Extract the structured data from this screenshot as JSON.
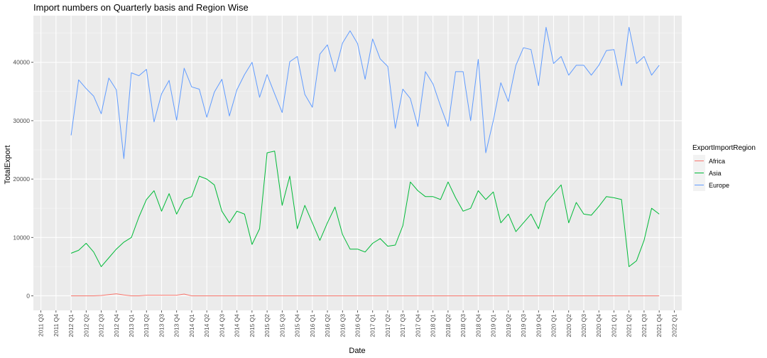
{
  "chart_data": {
    "type": "line",
    "title": "Import numbers on Quarterly basis and Region Wise",
    "xlabel": "Date",
    "ylabel": "TotalExport",
    "ylim": [
      -2500,
      48000
    ],
    "y_ticks": [
      0,
      10000,
      20000,
      30000,
      40000
    ],
    "x_tick_labels": [
      "2011 Q3",
      "2011 Q4",
      "2012 Q1",
      "2012 Q2",
      "2012 Q3",
      "2012 Q4",
      "2013 Q1",
      "2013 Q2",
      "2013 Q3",
      "2013 Q4",
      "2014 Q1",
      "2014 Q2",
      "2014 Q3",
      "2014 Q4",
      "2015 Q1",
      "2015 Q2",
      "2015 Q3",
      "2015 Q4",
      "2016 Q1",
      "2016 Q2",
      "2016 Q3",
      "2016 Q4",
      "2017 Q1",
      "2017 Q2",
      "2017 Q3",
      "2017 Q4",
      "2018 Q1",
      "2018 Q2",
      "2018 Q3",
      "2018 Q4",
      "2019 Q1",
      "2019 Q2",
      "2019 Q3",
      "2019 Q4",
      "2020 Q1",
      "2020 Q2",
      "2020 Q3",
      "2020 Q4",
      "2021 Q1",
      "2021 Q2",
      "2021 Q3",
      "2021 Q4",
      "2022 Q1"
    ],
    "legend": {
      "title": "ExportImportRegion",
      "position": "right"
    },
    "grid": true,
    "series": [
      {
        "name": "Africa",
        "color": "#F8766D",
        "x": [
          2.0,
          2.5,
          3.0,
          3.5,
          4.0,
          4.5,
          5.0,
          5.5,
          6.0,
          6.5,
          7.0,
          7.5,
          8.0,
          8.5,
          9.0,
          9.5,
          10.0,
          11.0,
          12.0,
          13.0,
          14.0,
          15.0,
          16.0,
          17.0,
          18.0,
          19.0,
          20.0,
          21.0,
          22.0,
          23.0,
          24.0,
          25.0,
          26.0,
          27.0,
          28.0,
          29.0,
          30.0,
          31.0,
          32.0,
          33.0,
          34.0,
          35.0,
          36.0,
          37.0,
          38.0,
          39.0,
          40.0,
          41.0
        ],
        "values": [
          0,
          0,
          0,
          0,
          50,
          200,
          350,
          150,
          0,
          0,
          100,
          100,
          100,
          100,
          100,
          300,
          0,
          0,
          0,
          0,
          0,
          0,
          0,
          0,
          0,
          0,
          0,
          0,
          0,
          0,
          0,
          0,
          0,
          0,
          0,
          0,
          0,
          0,
          0,
          0,
          0,
          0,
          0,
          0,
          0,
          0,
          0,
          0
        ]
      },
      {
        "name": "Asia",
        "color": "#00BA38",
        "x": [
          2.0,
          2.5,
          3.0,
          3.5,
          4.0,
          4.5,
          5.0,
          5.5,
          6.0,
          6.5,
          7.0,
          7.5,
          8.0,
          8.5,
          9.0,
          9.5,
          10.0,
          10.5,
          11.0,
          11.5,
          12.0,
          12.5,
          13.0,
          13.5,
          14.0,
          14.5,
          15.0,
          15.5,
          16.0,
          16.5,
          17.0,
          17.5,
          18.0,
          18.5,
          19.0,
          19.5,
          20.0,
          20.5,
          21.0,
          21.5,
          22.0,
          22.5,
          23.0,
          23.5,
          24.0,
          24.5,
          25.0,
          25.5,
          26.0,
          26.5,
          27.0,
          27.5,
          28.0,
          28.5,
          29.0,
          29.5,
          30.0,
          30.5,
          31.0,
          31.5,
          32.0,
          32.5,
          33.0,
          33.5,
          34.0,
          34.5,
          35.0,
          35.5,
          36.0,
          36.5,
          37.0,
          37.5,
          38.0,
          38.5,
          39.0,
          39.5,
          40.0,
          40.5,
          41.0
        ],
        "values": [
          7300,
          7800,
          9000,
          7500,
          5000,
          6500,
          8000,
          9200,
          10000,
          13500,
          16500,
          18000,
          14500,
          17500,
          14000,
          16500,
          17000,
          20500,
          20000,
          19000,
          14500,
          12500,
          14500,
          14000,
          8800,
          11500,
          24500,
          24800,
          15500,
          20500,
          11500,
          15500,
          12500,
          9500,
          12500,
          15200,
          10500,
          8000,
          8000,
          7500,
          9000,
          9800,
          8500,
          8700,
          12000,
          19500,
          18000,
          17000,
          17000,
          16500,
          19500,
          16800,
          14500,
          15000,
          18000,
          16500,
          17800,
          12500,
          14000,
          11000,
          12500,
          14000,
          11500,
          16000,
          17500,
          19000,
          12500,
          16000,
          14000,
          13800,
          15300,
          17000,
          16800,
          16500,
          5000,
          6000,
          9500,
          15000,
          14000
        ]
      },
      {
        "name": "Europe",
        "color": "#619CFF",
        "x": [
          2.0,
          2.5,
          3.0,
          3.5,
          4.0,
          4.5,
          5.0,
          5.5,
          6.0,
          6.5,
          7.0,
          7.5,
          8.0,
          8.5,
          9.0,
          9.5,
          10.0,
          10.5,
          11.0,
          11.5,
          12.0,
          12.5,
          13.0,
          13.5,
          14.0,
          14.5,
          15.0,
          15.5,
          16.0,
          16.5,
          17.0,
          17.5,
          18.0,
          18.5,
          19.0,
          19.5,
          20.0,
          20.5,
          21.0,
          21.5,
          22.0,
          22.5,
          23.0,
          23.5,
          24.0,
          24.5,
          25.0,
          25.5,
          26.0,
          26.5,
          27.0,
          27.5,
          28.0,
          28.5,
          29.0,
          29.5,
          30.0,
          30.5,
          31.0,
          31.5,
          32.0,
          32.5,
          33.0,
          33.5,
          34.0,
          34.5,
          35.0,
          35.5,
          36.0,
          36.5,
          37.0,
          37.5,
          38.0,
          38.5,
          39.0,
          39.5,
          40.0,
          40.5,
          41.0
        ],
        "values": [
          27500,
          37000,
          35500,
          34200,
          31200,
          37300,
          35300,
          23500,
          38200,
          37700,
          38800,
          29800,
          34600,
          36900,
          30100,
          39000,
          35800,
          35400,
          30600,
          34900,
          37100,
          30800,
          35300,
          37900,
          40000,
          34000,
          37900,
          34600,
          31400,
          40100,
          41000,
          34500,
          32300,
          41400,
          43000,
          38400,
          43300,
          45400,
          43200,
          37100,
          44000,
          40600,
          39300,
          28700,
          35400,
          33800,
          29000,
          38400,
          36300,
          32500,
          29000,
          38400,
          38400,
          30000,
          40500,
          24500,
          30000,
          36500,
          33300,
          39500,
          42500,
          42200,
          36000,
          46000,
          39800,
          41000,
          37800,
          39500,
          39500,
          37800,
          39500,
          42000,
          42200,
          36000,
          46000,
          39800,
          41000,
          37800,
          39500
        ]
      }
    ]
  }
}
